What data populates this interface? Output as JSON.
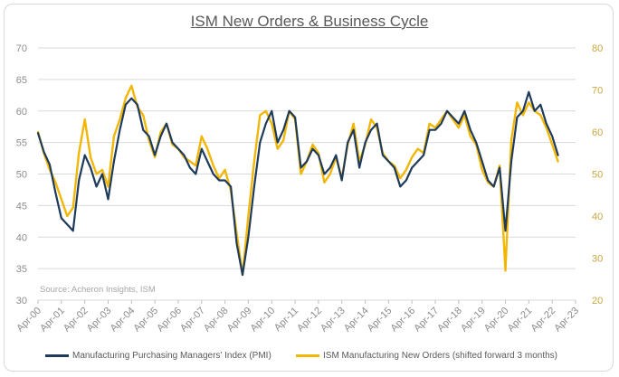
{
  "colors": {
    "pmi": "#1f3b5c",
    "new_orders": "#f2b705",
    "grid": "#d9d9d9",
    "axis_left": "#8c8c8c",
    "axis_right": "#c9a640"
  },
  "chart_data": {
    "type": "line",
    "title": "ISM New Orders & Business Cycle",
    "source": "Source: Acheron Insights, ISM",
    "x_tick_labels": [
      "Apr-00",
      "Apr-01",
      "Apr-02",
      "Apr-03",
      "Apr-04",
      "Apr-05",
      "Apr-06",
      "Apr-07",
      "Apr-08",
      "Apr-09",
      "Apr-10",
      "Apr-11",
      "Apr-12",
      "Apr-13",
      "Apr-14",
      "Apr-15",
      "Apr-16",
      "Apr-17",
      "Apr-18",
      "Apr-19",
      "Apr-20",
      "Apr-21",
      "Apr-22",
      "Apr-23"
    ],
    "y_left": {
      "min": 30,
      "max": 70,
      "ticks": [
        30,
        35,
        40,
        45,
        50,
        55,
        60,
        65,
        70
      ]
    },
    "y_right": {
      "min": 20,
      "max": 80,
      "ticks": [
        20,
        30,
        40,
        50,
        60,
        70,
        80
      ]
    },
    "x_range": [
      2000.25,
      2023.25
    ],
    "series": [
      {
        "name": "Manufacturing Purchasing Managers' Index (PMI)",
        "axis": "left",
        "points": [
          [
            2000.25,
            56.5
          ],
          [
            2000.5,
            53.5
          ],
          [
            2000.75,
            51.5
          ],
          [
            2001.0,
            47
          ],
          [
            2001.25,
            43
          ],
          [
            2001.5,
            42
          ],
          [
            2001.75,
            41
          ],
          [
            2002.0,
            49
          ],
          [
            2002.25,
            53
          ],
          [
            2002.5,
            51
          ],
          [
            2002.75,
            48
          ],
          [
            2003.0,
            50
          ],
          [
            2003.25,
            46
          ],
          [
            2003.5,
            52
          ],
          [
            2003.75,
            57
          ],
          [
            2004.0,
            61
          ],
          [
            2004.25,
            62
          ],
          [
            2004.5,
            61
          ],
          [
            2004.75,
            57
          ],
          [
            2005.0,
            56
          ],
          [
            2005.25,
            53
          ],
          [
            2005.5,
            56
          ],
          [
            2005.75,
            58
          ],
          [
            2006.0,
            55
          ],
          [
            2006.25,
            54
          ],
          [
            2006.5,
            53
          ],
          [
            2006.75,
            51
          ],
          [
            2007.0,
            50
          ],
          [
            2007.25,
            54
          ],
          [
            2007.5,
            52
          ],
          [
            2007.75,
            50
          ],
          [
            2008.0,
            49
          ],
          [
            2008.25,
            49
          ],
          [
            2008.5,
            48
          ],
          [
            2008.75,
            39
          ],
          [
            2009.0,
            34
          ],
          [
            2009.25,
            40
          ],
          [
            2009.5,
            48
          ],
          [
            2009.75,
            55
          ],
          [
            2010.0,
            58
          ],
          [
            2010.25,
            60
          ],
          [
            2010.5,
            55
          ],
          [
            2010.75,
            57
          ],
          [
            2011.0,
            60
          ],
          [
            2011.25,
            59
          ],
          [
            2011.5,
            51
          ],
          [
            2011.75,
            52
          ],
          [
            2012.0,
            54
          ],
          [
            2012.25,
            53
          ],
          [
            2012.5,
            50
          ],
          [
            2012.75,
            51
          ],
          [
            2013.0,
            53
          ],
          [
            2013.25,
            49
          ],
          [
            2013.5,
            55
          ],
          [
            2013.75,
            57
          ],
          [
            2014.0,
            51
          ],
          [
            2014.25,
            55
          ],
          [
            2014.5,
            57
          ],
          [
            2014.75,
            58
          ],
          [
            2015.0,
            53
          ],
          [
            2015.25,
            52
          ],
          [
            2015.5,
            51
          ],
          [
            2015.75,
            48
          ],
          [
            2016.0,
            49
          ],
          [
            2016.25,
            51
          ],
          [
            2016.5,
            52
          ],
          [
            2016.75,
            53
          ],
          [
            2017.0,
            57
          ],
          [
            2017.25,
            57
          ],
          [
            2017.5,
            58
          ],
          [
            2017.75,
            60
          ],
          [
            2018.0,
            59
          ],
          [
            2018.25,
            58
          ],
          [
            2018.5,
            60
          ],
          [
            2018.75,
            57
          ],
          [
            2019.0,
            55
          ],
          [
            2019.25,
            52
          ],
          [
            2019.5,
            49
          ],
          [
            2019.75,
            48
          ],
          [
            2020.0,
            51
          ],
          [
            2020.25,
            41
          ],
          [
            2020.5,
            52
          ],
          [
            2020.75,
            59
          ],
          [
            2021.0,
            60
          ],
          [
            2021.25,
            63
          ],
          [
            2021.5,
            60
          ],
          [
            2021.75,
            61
          ],
          [
            2022.0,
            58
          ],
          [
            2022.25,
            56
          ],
          [
            2022.5,
            53
          ]
        ]
      },
      {
        "name": "ISM Manufacturing New Orders (shifted forward 3 months)",
        "axis": "right",
        "points": [
          [
            2000.25,
            60
          ],
          [
            2000.5,
            55
          ],
          [
            2000.75,
            51
          ],
          [
            2001.0,
            48
          ],
          [
            2001.25,
            44
          ],
          [
            2001.5,
            40
          ],
          [
            2001.75,
            42
          ],
          [
            2002.0,
            55
          ],
          [
            2002.25,
            63
          ],
          [
            2002.5,
            54
          ],
          [
            2002.75,
            50
          ],
          [
            2003.0,
            51
          ],
          [
            2003.25,
            47
          ],
          [
            2003.5,
            59
          ],
          [
            2003.75,
            63
          ],
          [
            2004.0,
            68
          ],
          [
            2004.25,
            71
          ],
          [
            2004.5,
            66
          ],
          [
            2004.75,
            64
          ],
          [
            2005.0,
            58
          ],
          [
            2005.25,
            54
          ],
          [
            2005.5,
            60
          ],
          [
            2005.75,
            62
          ],
          [
            2006.0,
            57
          ],
          [
            2006.25,
            56
          ],
          [
            2006.5,
            54
          ],
          [
            2006.75,
            53
          ],
          [
            2007.0,
            52
          ],
          [
            2007.25,
            59
          ],
          [
            2007.5,
            56
          ],
          [
            2007.75,
            52
          ],
          [
            2008.0,
            49
          ],
          [
            2008.25,
            51
          ],
          [
            2008.5,
            46
          ],
          [
            2008.75,
            36
          ],
          [
            2009.0,
            26
          ],
          [
            2009.25,
            40
          ],
          [
            2009.5,
            53
          ],
          [
            2009.75,
            64
          ],
          [
            2010.0,
            65
          ],
          [
            2010.25,
            62
          ],
          [
            2010.5,
            56
          ],
          [
            2010.75,
            58
          ],
          [
            2011.0,
            65
          ],
          [
            2011.25,
            63
          ],
          [
            2011.5,
            50
          ],
          [
            2011.75,
            53
          ],
          [
            2012.0,
            57
          ],
          [
            2012.25,
            55
          ],
          [
            2012.5,
            48
          ],
          [
            2012.75,
            50
          ],
          [
            2013.0,
            54
          ],
          [
            2013.25,
            49
          ],
          [
            2013.5,
            57
          ],
          [
            2013.75,
            62
          ],
          [
            2014.0,
            53
          ],
          [
            2014.25,
            57
          ],
          [
            2014.5,
            63
          ],
          [
            2014.75,
            61
          ],
          [
            2015.0,
            55
          ],
          [
            2015.25,
            53
          ],
          [
            2015.5,
            52
          ],
          [
            2015.75,
            49
          ],
          [
            2016.0,
            51
          ],
          [
            2016.25,
            54
          ],
          [
            2016.5,
            56
          ],
          [
            2016.75,
            55
          ],
          [
            2017.0,
            62
          ],
          [
            2017.25,
            61
          ],
          [
            2017.5,
            63
          ],
          [
            2017.75,
            65
          ],
          [
            2018.0,
            63
          ],
          [
            2018.25,
            61
          ],
          [
            2018.5,
            64
          ],
          [
            2018.75,
            59
          ],
          [
            2019.0,
            57
          ],
          [
            2019.25,
            51
          ],
          [
            2019.5,
            48
          ],
          [
            2019.75,
            47
          ],
          [
            2020.0,
            52
          ],
          [
            2020.25,
            27
          ],
          [
            2020.5,
            58
          ],
          [
            2020.75,
            67
          ],
          [
            2021.0,
            64
          ],
          [
            2021.25,
            67
          ],
          [
            2021.5,
            65
          ],
          [
            2021.75,
            64
          ],
          [
            2022.0,
            61
          ],
          [
            2022.25,
            57
          ],
          [
            2022.5,
            53
          ]
        ]
      }
    ]
  }
}
